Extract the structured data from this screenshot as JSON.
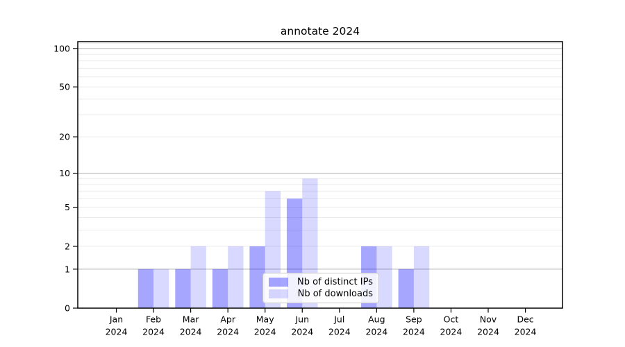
{
  "chart_data": {
    "type": "bar",
    "title": "annotate 2024",
    "categories": [
      {
        "month": "Jan",
        "year": "2024"
      },
      {
        "month": "Feb",
        "year": "2024"
      },
      {
        "month": "Mar",
        "year": "2024"
      },
      {
        "month": "Apr",
        "year": "2024"
      },
      {
        "month": "May",
        "year": "2024"
      },
      {
        "month": "Jun",
        "year": "2024"
      },
      {
        "month": "Jul",
        "year": "2024"
      },
      {
        "month": "Aug",
        "year": "2024"
      },
      {
        "month": "Sep",
        "year": "2024"
      },
      {
        "month": "Oct",
        "year": "2024"
      },
      {
        "month": "Nov",
        "year": "2024"
      },
      {
        "month": "Dec",
        "year": "2024"
      }
    ],
    "series": [
      {
        "name": "Nb of distinct IPs",
        "color": "#0000FF59",
        "values": [
          0,
          1,
          1,
          1,
          2,
          6,
          0,
          2,
          1,
          0,
          0,
          0
        ]
      },
      {
        "name": "Nb of downloads",
        "color": "#0000FF26",
        "values": [
          0,
          1,
          2,
          2,
          7,
          9,
          0,
          2,
          2,
          0,
          0,
          0
        ]
      }
    ],
    "xlabel": "",
    "ylabel": "",
    "y_axis": {
      "scale": "log10(1+y)",
      "ticks": [
        0,
        1,
        2,
        5,
        10,
        20,
        50,
        100
      ],
      "max": 113,
      "major_gridlines": [
        1,
        10,
        100
      ],
      "minor_gridlines": [
        2,
        3,
        4,
        5,
        6,
        7,
        8,
        9,
        20,
        30,
        40,
        50,
        60,
        70,
        80,
        90,
        110
      ]
    },
    "grid": {
      "on": true,
      "major_color": "#b8b8b8",
      "minor_color": "#ebebeb"
    },
    "legend": {
      "position": "lower center",
      "background": "#FFFFFFD9",
      "border_color": "#c8c8c8"
    }
  }
}
